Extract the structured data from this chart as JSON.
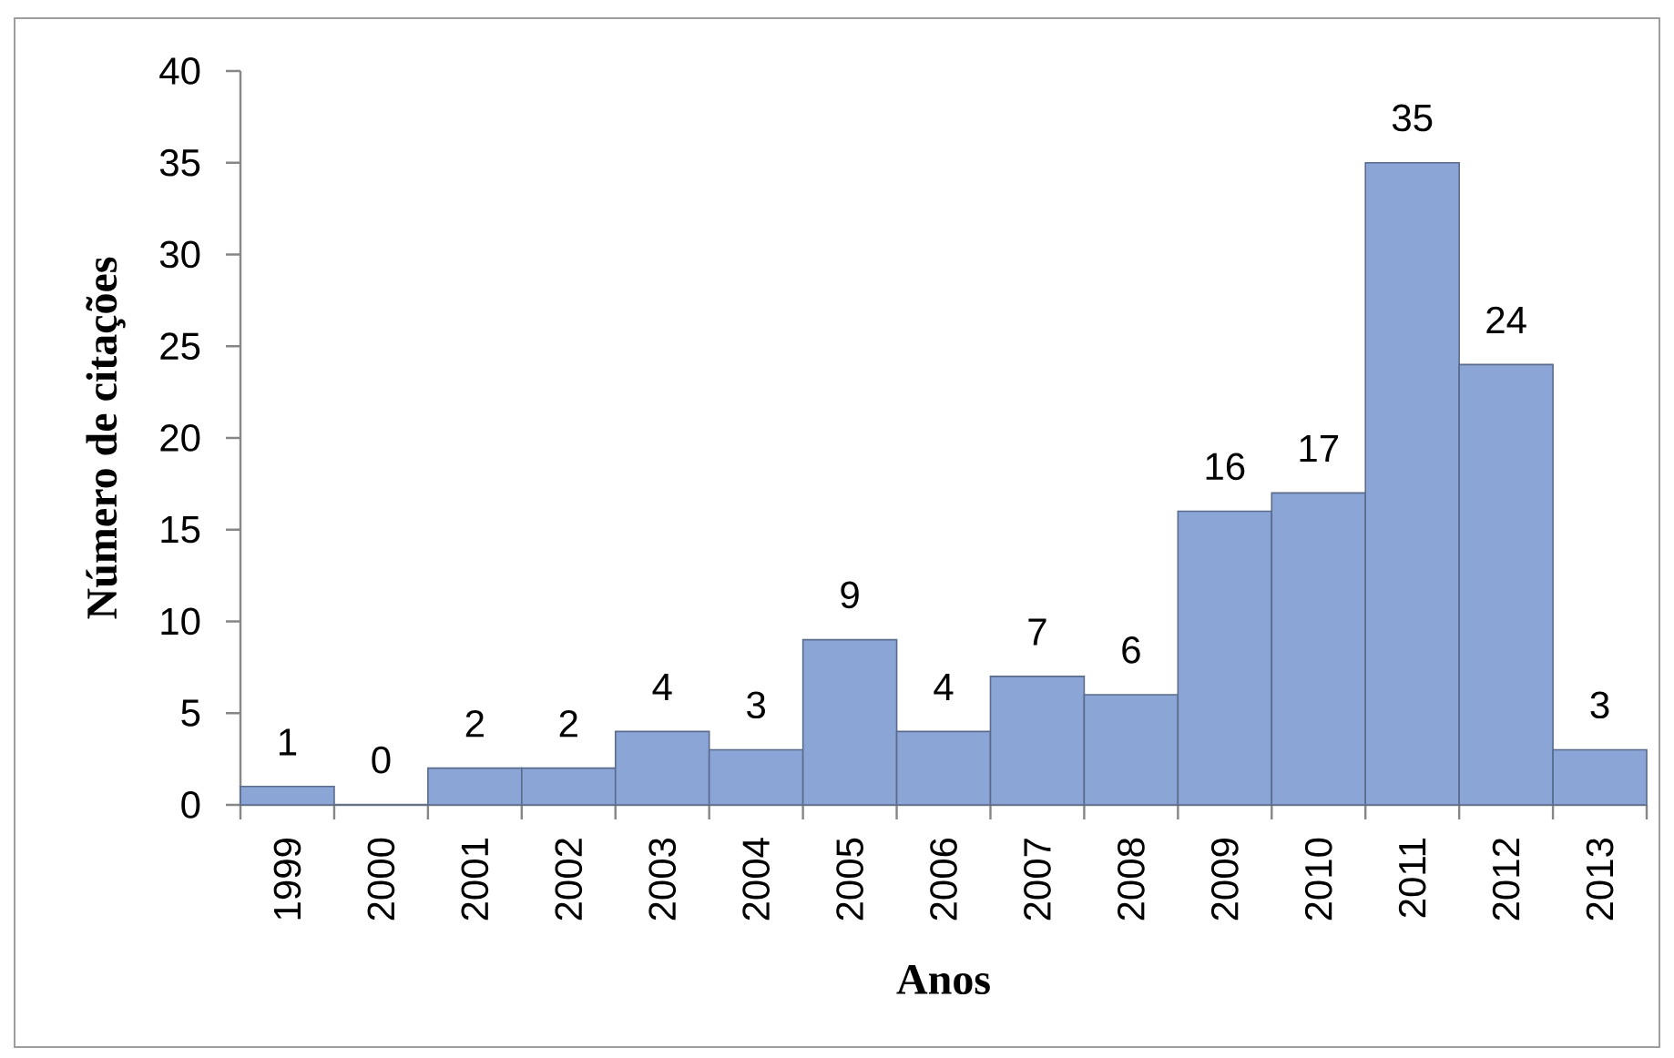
{
  "chart_data": {
    "type": "bar",
    "xlabel": "Anos",
    "ylabel": "Número de citações",
    "categories": [
      "1999",
      "2000",
      "2001",
      "2002",
      "2003",
      "2004",
      "2005",
      "2006",
      "2007",
      "2008",
      "2009",
      "2010",
      "2011",
      "2012",
      "2013"
    ],
    "values": [
      1,
      0,
      2,
      2,
      4,
      3,
      9,
      4,
      7,
      6,
      16,
      17,
      35,
      24,
      3
    ],
    "color": "#8aa5d6",
    "ylim": [
      0,
      40
    ],
    "yticks": [
      0,
      5,
      10,
      15,
      20,
      25,
      30,
      35,
      40
    ],
    "data_labels": true
  }
}
